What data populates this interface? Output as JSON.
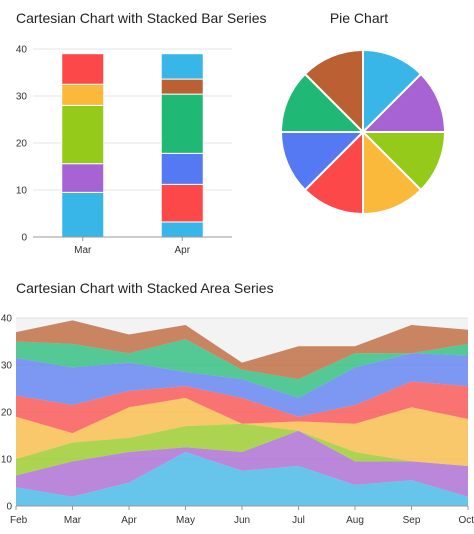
{
  "chart_data": [
    {
      "type": "bar",
      "stacked": true,
      "title": "Cartesian Chart with Stacked Bar Series",
      "categories": [
        "Mar",
        "Apr"
      ],
      "ylim": [
        0,
        40
      ],
      "yticks": [
        0,
        10,
        20,
        30,
        40
      ],
      "grid": true,
      "series": [
        {
          "color": "#38b6e8",
          "values": [
            9.5,
            3.2
          ]
        },
        {
          "color": "#a763d3",
          "values": [
            6.1,
            0
          ]
        },
        {
          "color": "#95c91a",
          "values": [
            12.4,
            0
          ]
        },
        {
          "color": "#fbb93c",
          "values": [
            4.5,
            0
          ]
        },
        {
          "color": "#fc4848",
          "values": [
            6.5,
            8
          ]
        },
        {
          "color": "#5479f2",
          "values": [
            0,
            6.6
          ]
        },
        {
          "color": "#1fb975",
          "values": [
            0,
            12.6
          ]
        },
        {
          "color": "#bb6032",
          "values": [
            0,
            3.2
          ]
        },
        {
          "color": "#38b6e8",
          "values": [
            0,
            5.4
          ]
        }
      ]
    },
    {
      "type": "pie",
      "title": "Pie Chart",
      "values": [
        1,
        1,
        1,
        1,
        1,
        1,
        1,
        1
      ],
      "colors": [
        "#38b6e8",
        "#a763d3",
        "#95c91a",
        "#fbb93c",
        "#fc4848",
        "#5479f2",
        "#1fb975",
        "#bb6032"
      ]
    },
    {
      "type": "area",
      "stacked": true,
      "title": "Cartesian Chart with Stacked Area Series",
      "categories": [
        "Feb",
        "Mar",
        "Apr",
        "May",
        "Jun",
        "Jul",
        "Aug",
        "Sep",
        "Oct"
      ],
      "ylim": [
        0,
        40
      ],
      "yticks": [
        0,
        10,
        20,
        30,
        40
      ],
      "grid": true,
      "series": [
        {
          "color": "#38b6e8",
          "values": [
            4,
            2,
            5,
            11.5,
            7.5,
            8.5,
            4.5,
            5.5,
            2
          ]
        },
        {
          "color": "#a763d3",
          "values": [
            2.5,
            7.5,
            6.5,
            1,
            4,
            7.5,
            5,
            4,
            6.5
          ]
        },
        {
          "color": "#95c91a",
          "values": [
            3.5,
            4,
            3,
            4.5,
            6,
            0,
            2,
            0,
            0
          ]
        },
        {
          "color": "#fbb93c",
          "values": [
            9,
            2,
            6.5,
            6,
            0,
            2,
            6,
            11.5,
            10
          ]
        },
        {
          "color": "#fc4848",
          "values": [
            4.5,
            6,
            3.5,
            2.5,
            5.5,
            1,
            4,
            5.5,
            7
          ]
        },
        {
          "color": "#5479f2",
          "values": [
            8,
            8,
            6,
            3,
            4,
            4,
            8,
            6,
            6.5
          ]
        },
        {
          "color": "#1fb975",
          "values": [
            3.5,
            5,
            2,
            7,
            2,
            4,
            3,
            0,
            2.5
          ]
        },
        {
          "color": "#bb6032",
          "values": [
            2,
            5,
            4,
            3,
            1.5,
            7,
            1.5,
            6,
            3
          ]
        }
      ]
    }
  ]
}
